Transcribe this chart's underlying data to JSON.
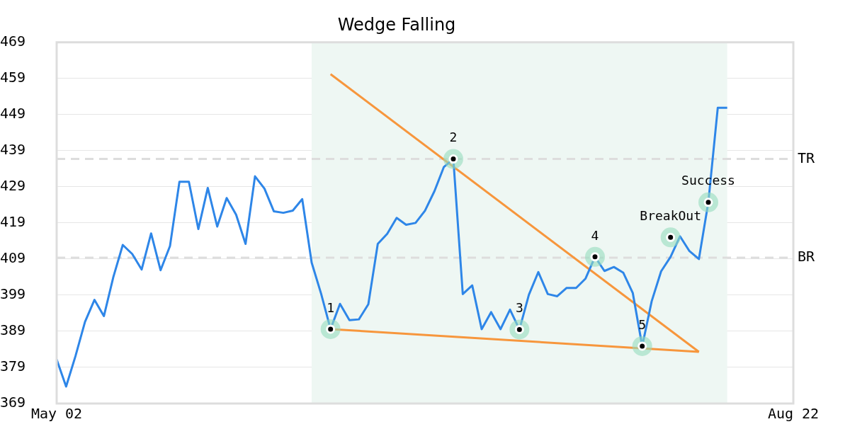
{
  "chart_data": {
    "type": "line",
    "title": "Wedge Falling",
    "categories": [
      "May 02",
      null,
      null,
      null,
      null,
      null,
      null,
      null,
      null,
      null,
      null,
      null,
      null,
      null,
      null,
      null,
      null,
      null,
      null,
      null,
      null,
      null,
      null,
      null,
      null,
      null,
      null,
      null,
      null,
      null,
      null,
      null,
      null,
      null,
      null,
      null,
      null,
      null,
      null,
      null,
      null,
      null,
      null,
      null,
      null,
      null,
      null,
      null,
      null,
      null,
      null,
      null,
      null,
      null,
      null,
      null,
      null,
      null,
      null,
      null,
      null,
      null,
      null,
      null,
      null,
      null,
      null,
      null,
      null,
      null,
      null,
      null,
      null,
      null,
      null,
      null,
      null,
      null,
      "Aug 22"
    ],
    "ylim": [
      369,
      469
    ],
    "yticks": [
      369,
      379,
      389,
      399,
      409,
      419,
      429,
      439,
      449,
      459,
      469
    ],
    "grid": "y",
    "series": [
      {
        "color": "#2e86e8",
        "marker": "none",
        "values": [
          381.2,
          373.7,
          382.2,
          391.6,
          397.7,
          393.2,
          404.0,
          412.9,
          410.4,
          406.1,
          416.1,
          405.9,
          412.6,
          430.4,
          430.4,
          417.3,
          428.7,
          418.0,
          425.9,
          421.3,
          413.2,
          431.9,
          428.5,
          422.2,
          421.8,
          422.4,
          425.6,
          408.0,
          399.4,
          389.6,
          396.6,
          392.1,
          392.3,
          396.5,
          413.2,
          416.0,
          420.4,
          418.5,
          419.0,
          422.4,
          427.8,
          434.5,
          436.7,
          399.3,
          401.7,
          389.6,
          394.3,
          389.6,
          395.0,
          389.5,
          399.1,
          405.4,
          399.3,
          398.7,
          401.0,
          401.0,
          403.6,
          409.6,
          405.7,
          406.8,
          405.2,
          399.6,
          384.9,
          397.3,
          405.6,
          409.6,
          415.3,
          411.2,
          409.0,
          424.7,
          450.9,
          450.9,
          null,
          null,
          null,
          null,
          null,
          null,
          null
        ]
      },
      {
        "type": "line",
        "color": "#f7963c",
        "marker": "none",
        "values": [
          null,
          null,
          null,
          null,
          null,
          null,
          null,
          null,
          null,
          null,
          null,
          null,
          null,
          null,
          null,
          null,
          null,
          null,
          null,
          null,
          null,
          null,
          null,
          null,
          null,
          null,
          null,
          null,
          null,
          460.2,
          null,
          null,
          null,
          null,
          null,
          null,
          null,
          null,
          null,
          null,
          null,
          null,
          null,
          null,
          null,
          null,
          null,
          null,
          null,
          null,
          null,
          null,
          null,
          null,
          null,
          null,
          null,
          null,
          null,
          null,
          null,
          null,
          null,
          null,
          null,
          null,
          null,
          null,
          383.3,
          null,
          null,
          null,
          null,
          null,
          null,
          null,
          null,
          null,
          null
        ]
      },
      {
        "type": "line",
        "color": "#f7963c",
        "marker": "none",
        "values": [
          null,
          null,
          null,
          null,
          null,
          null,
          null,
          null,
          null,
          null,
          null,
          null,
          null,
          null,
          null,
          null,
          null,
          null,
          null,
          null,
          null,
          null,
          null,
          null,
          null,
          null,
          null,
          null,
          null,
          389.6,
          null,
          null,
          null,
          null,
          null,
          null,
          null,
          null,
          null,
          null,
          null,
          null,
          null,
          null,
          null,
          null,
          null,
          null,
          null,
          null,
          null,
          null,
          null,
          null,
          null,
          null,
          null,
          null,
          null,
          null,
          null,
          null,
          null,
          null,
          null,
          null,
          null,
          null,
          383.3,
          null,
          null,
          null,
          null,
          null,
          null,
          null,
          null,
          null,
          null
        ]
      },
      {
        "type": "scatter",
        "color": "#000000",
        "marker": "circle",
        "values": [
          null,
          null,
          null,
          null,
          null,
          null,
          null,
          null,
          null,
          null,
          null,
          null,
          null,
          null,
          null,
          null,
          null,
          null,
          null,
          null,
          null,
          null,
          null,
          null,
          null,
          null,
          null,
          null,
          null,
          389.6,
          null,
          null,
          null,
          null,
          null,
          null,
          null,
          null,
          null,
          null,
          null,
          null,
          436.7,
          null,
          null,
          null,
          null,
          null,
          null,
          389.5,
          null,
          null,
          null,
          null,
          null,
          null,
          null,
          409.6,
          null,
          null,
          null,
          null,
          384.9,
          null,
          null,
          415.0,
          null,
          null,
          null,
          424.7,
          null,
          null,
          null,
          null,
          null,
          null,
          null,
          null,
          null
        ]
      }
    ],
    "annotations": [
      {
        "text": "1",
        "y": 389.6
      },
      {
        "text": "2",
        "y": 436.7
      },
      {
        "text": "3",
        "y": 389.5
      },
      {
        "text": "4",
        "y": 409.6
      },
      {
        "text": "5",
        "y": 384.9
      },
      {
        "text": "BreakOut",
        "y": 415.0
      },
      {
        "text": "Success",
        "y": 424.7
      }
    ],
    "ref_lines": [
      {
        "axis": "y",
        "value": 436.7,
        "label": "TR",
        "color": "#dddddd",
        "line_style": "dashed"
      },
      {
        "axis": "y",
        "value": 409.4,
        "label": "BR",
        "color": "#dddddd",
        "line_style": "dashed"
      }
    ]
  }
}
